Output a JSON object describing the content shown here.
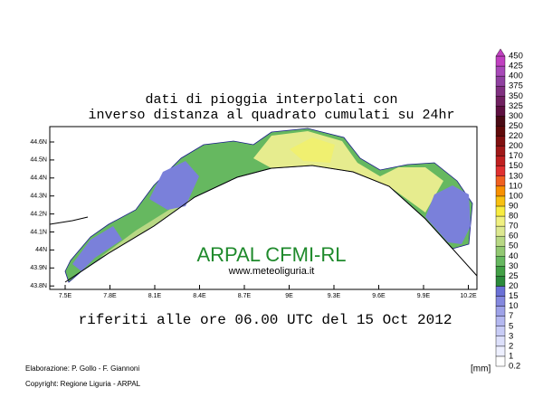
{
  "title_lines": [
    "dati di pioggia interpolati con",
    "inverso distanza al quadrato cumulati su 24hr"
  ],
  "map": {
    "lon_labels": [
      "7.5E",
      "7.8E",
      "8.1E",
      "8.4E",
      "8.7E",
      "9E",
      "9.3E",
      "9.6E",
      "9.9E",
      "10.2E"
    ],
    "lat_labels": [
      "44.6N",
      "44.5N",
      "44.4N",
      "44.3N",
      "44.2N",
      "44.1N",
      "44N",
      "43.9N",
      "43.8N"
    ],
    "watermark": "ARPAL CFMI-RL",
    "website": "www.meteoliguria.it"
  },
  "subtitle": "riferiti alle ore 06.00 UTC del 15 Oct 2012",
  "credits": [
    "Elaborazione: P. Gollo - F. Giannoni",
    "Copyright: Regione Liguria - ARPAL"
  ],
  "unit": "[mm]",
  "colorbar": {
    "levels": [
      0.2,
      1,
      2,
      3,
      5,
      7,
      10,
      15,
      20,
      25,
      30,
      40,
      50,
      60,
      70,
      80,
      90,
      100,
      110,
      130,
      150,
      170,
      200,
      220,
      250,
      300,
      325,
      350,
      375,
      400,
      425,
      450
    ],
    "colors": [
      "#ffffff",
      "#eef0ff",
      "#dde0fb",
      "#c8ccf6",
      "#b4b8f0",
      "#9ea2e8",
      "#8488df",
      "#6a70d6",
      "#2c8a3c",
      "#42a046",
      "#66b860",
      "#92c872",
      "#b8d884",
      "#dde890",
      "#f0f080",
      "#f8ec40",
      "#f8c010",
      "#f89000",
      "#f06020",
      "#e03030",
      "#c02020",
      "#a01818",
      "#801010",
      "#600a0a",
      "#4a0a14",
      "#5e1040",
      "#702060",
      "#803080",
      "#9040a0",
      "#a848b8",
      "#c040c0"
    ]
  }
}
